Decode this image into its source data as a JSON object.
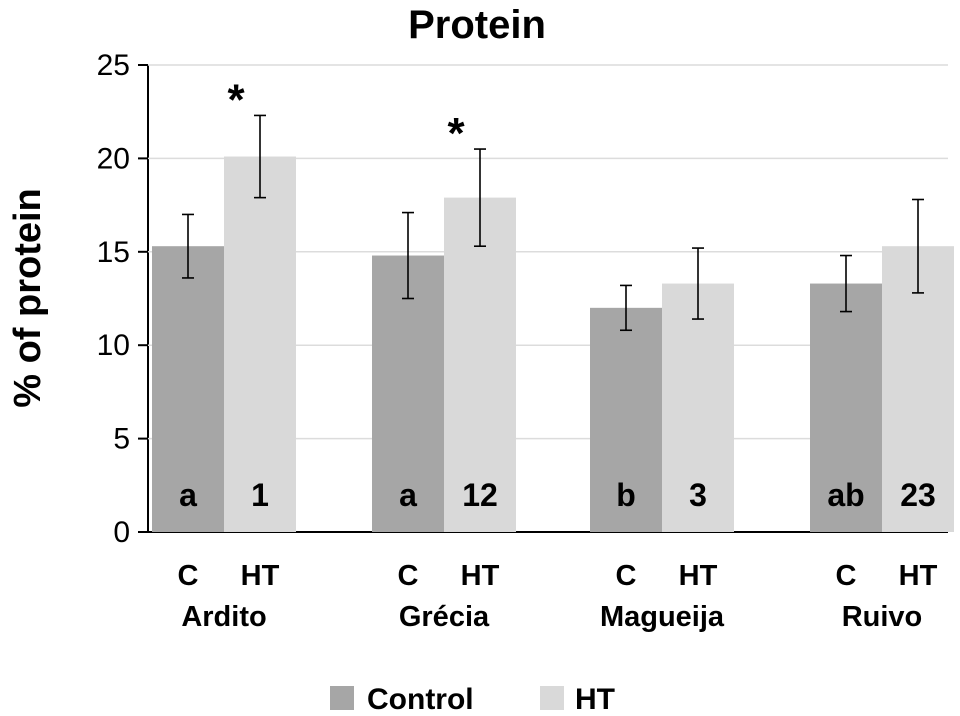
{
  "chart_data": {
    "type": "bar",
    "title": "Protein",
    "ylabel": "% of protein",
    "xlabel": "",
    "ylim": [
      0,
      25
    ],
    "yticks": [
      "0",
      "5",
      "10",
      "15",
      "20",
      "25"
    ],
    "grid": true,
    "legend_position": "bottom",
    "categories": [
      "Ardito",
      "Grécia",
      "Magueija",
      "Ruivo"
    ],
    "bar_tick_labels": [
      "C",
      "HT"
    ],
    "series": [
      {
        "name": "Control",
        "color": "#a6a6a6",
        "values": [
          15.3,
          14.8,
          12.0,
          13.3
        ],
        "error": [
          1.7,
          2.3,
          1.2,
          1.5
        ],
        "labels": [
          "a",
          "a",
          "b",
          "ab"
        ]
      },
      {
        "name": "HT",
        "color": "#d9d9d9",
        "values": [
          20.1,
          17.9,
          13.3,
          15.3
        ],
        "error": [
          2.2,
          2.6,
          1.9,
          2.5
        ],
        "labels": [
          "1",
          "12",
          "3",
          "23"
        ]
      }
    ],
    "annotations": [
      "*",
      "*",
      "",
      ""
    ]
  }
}
